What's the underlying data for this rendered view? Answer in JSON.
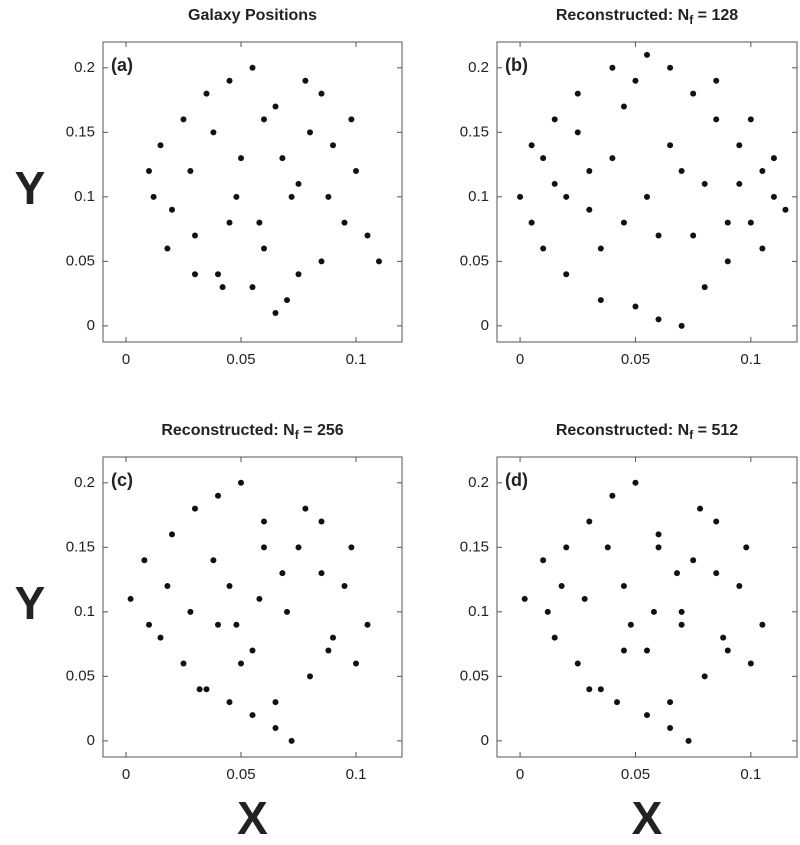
{
  "chart_data": [
    {
      "type": "scatter",
      "title": [
        "Galaxy Positions"
      ],
      "annotation": "(a)",
      "ylabel": "Y",
      "color": "#111111",
      "x": [
        0.01,
        0.015,
        0.02,
        0.025,
        0.03,
        0.035,
        0.04,
        0.045,
        0.05,
        0.055,
        0.06,
        0.065,
        0.07,
        0.075,
        0.08,
        0.085,
        0.09,
        0.095,
        0.1,
        0.105,
        0.11,
        0.012,
        0.018,
        0.028,
        0.038,
        0.048,
        0.058,
        0.068,
        0.078,
        0.088,
        0.098,
        0.03,
        0.042,
        0.055,
        0.065,
        0.075,
        0.085,
        0.045,
        0.06,
        0.072
      ],
      "y": [
        0.12,
        0.14,
        0.09,
        0.16,
        0.07,
        0.18,
        0.04,
        0.19,
        0.13,
        0.2,
        0.06,
        0.17,
        0.02,
        0.11,
        0.15,
        0.05,
        0.14,
        0.08,
        0.12,
        0.07,
        0.05,
        0.1,
        0.06,
        0.12,
        0.15,
        0.1,
        0.08,
        0.13,
        0.19,
        0.1,
        0.16,
        0.04,
        0.03,
        0.03,
        0.01,
        0.04,
        0.18,
        0.08,
        0.16,
        0.1
      ],
      "xlim": [
        -0.01,
        0.12
      ],
      "ylim": [
        -0.0125,
        0.22
      ],
      "xticks": [
        0,
        0.05,
        0.1
      ],
      "yticks": [
        0,
        0.05,
        0.1,
        0.15,
        0.2
      ]
    },
    {
      "type": "scatter",
      "title": [
        "Reconstructed: N",
        "f",
        " = 128"
      ],
      "annotation": "(b)",
      "color": "#111111",
      "x": [
        0.0,
        0.005,
        0.01,
        0.015,
        0.02,
        0.025,
        0.03,
        0.035,
        0.04,
        0.045,
        0.05,
        0.055,
        0.06,
        0.065,
        0.07,
        0.075,
        0.08,
        0.085,
        0.09,
        0.095,
        0.1,
        0.105,
        0.11,
        0.115,
        0.005,
        0.015,
        0.025,
        0.035,
        0.045,
        0.055,
        0.065,
        0.075,
        0.085,
        0.095,
        0.105,
        0.01,
        0.03,
        0.05,
        0.07,
        0.09,
        0.11,
        0.02,
        0.04,
        0.06,
        0.08,
        0.1
      ],
      "y": [
        0.1,
        0.14,
        0.06,
        0.16,
        0.04,
        0.18,
        0.12,
        0.02,
        0.2,
        0.08,
        0.015,
        0.21,
        0.005,
        0.2,
        0.0,
        0.18,
        0.03,
        0.16,
        0.05,
        0.14,
        0.08,
        0.12,
        0.1,
        0.09,
        0.08,
        0.11,
        0.15,
        0.06,
        0.17,
        0.1,
        0.14,
        0.07,
        0.19,
        0.11,
        0.06,
        0.13,
        0.09,
        0.19,
        0.12,
        0.08,
        0.13,
        0.1,
        0.13,
        0.07,
        0.11,
        0.16
      ],
      "xlim": [
        -0.01,
        0.12
      ],
      "ylim": [
        -0.0125,
        0.22
      ],
      "xticks": [
        0,
        0.05,
        0.1
      ],
      "yticks": [
        0,
        0.05,
        0.1,
        0.15,
        0.2
      ]
    },
    {
      "type": "scatter",
      "title": [
        "Reconstructed: N",
        "f",
        " = 256"
      ],
      "annotation": "(c)",
      "ylabel": "Y",
      "xlabel": "X",
      "color": "#111111",
      "x": [
        0.002,
        0.008,
        0.015,
        0.02,
        0.025,
        0.03,
        0.035,
        0.04,
        0.045,
        0.05,
        0.055,
        0.06,
        0.065,
        0.07,
        0.075,
        0.08,
        0.085,
        0.09,
        0.095,
        0.1,
        0.105,
        0.01,
        0.018,
        0.028,
        0.038,
        0.048,
        0.058,
        0.068,
        0.078,
        0.088,
        0.098,
        0.032,
        0.045,
        0.055,
        0.065,
        0.072,
        0.085,
        0.05,
        0.06,
        0.04
      ],
      "y": [
        0.11,
        0.14,
        0.08,
        0.16,
        0.06,
        0.18,
        0.04,
        0.19,
        0.12,
        0.2,
        0.07,
        0.17,
        0.03,
        0.1,
        0.15,
        0.05,
        0.13,
        0.08,
        0.12,
        0.06,
        0.09,
        0.09,
        0.12,
        0.1,
        0.14,
        0.09,
        0.11,
        0.13,
        0.18,
        0.07,
        0.15,
        0.04,
        0.03,
        0.02,
        0.01,
        0.0,
        0.17,
        0.06,
        0.15,
        0.09
      ],
      "xlim": [
        -0.01,
        0.12
      ],
      "ylim": [
        -0.0125,
        0.22
      ],
      "xticks": [
        0,
        0.05,
        0.1
      ],
      "yticks": [
        0,
        0.05,
        0.1,
        0.15,
        0.2
      ]
    },
    {
      "type": "scatter",
      "title": [
        "Reconstructed: N",
        "f",
        " = 512"
      ],
      "annotation": "(d)",
      "xlabel": "X",
      "color": "#111111",
      "x": [
        0.002,
        0.01,
        0.015,
        0.02,
        0.025,
        0.03,
        0.035,
        0.04,
        0.045,
        0.05,
        0.055,
        0.06,
        0.065,
        0.07,
        0.075,
        0.08,
        0.085,
        0.09,
        0.095,
        0.1,
        0.105,
        0.012,
        0.018,
        0.028,
        0.038,
        0.048,
        0.058,
        0.068,
        0.078,
        0.088,
        0.098,
        0.03,
        0.042,
        0.055,
        0.065,
        0.073,
        0.085,
        0.045,
        0.06,
        0.07
      ],
      "y": [
        0.11,
        0.14,
        0.08,
        0.15,
        0.06,
        0.17,
        0.04,
        0.19,
        0.12,
        0.2,
        0.07,
        0.16,
        0.03,
        0.1,
        0.14,
        0.05,
        0.13,
        0.07,
        0.12,
        0.06,
        0.09,
        0.1,
        0.12,
        0.11,
        0.15,
        0.09,
        0.1,
        0.13,
        0.18,
        0.08,
        0.15,
        0.04,
        0.03,
        0.02,
        0.01,
        0.0,
        0.17,
        0.07,
        0.15,
        0.09
      ],
      "xlim": [
        -0.01,
        0.12
      ],
      "ylim": [
        -0.0125,
        0.22
      ],
      "xticks": [
        0,
        0.05,
        0.1
      ],
      "yticks": [
        0,
        0.05,
        0.1,
        0.15,
        0.2
      ]
    }
  ]
}
